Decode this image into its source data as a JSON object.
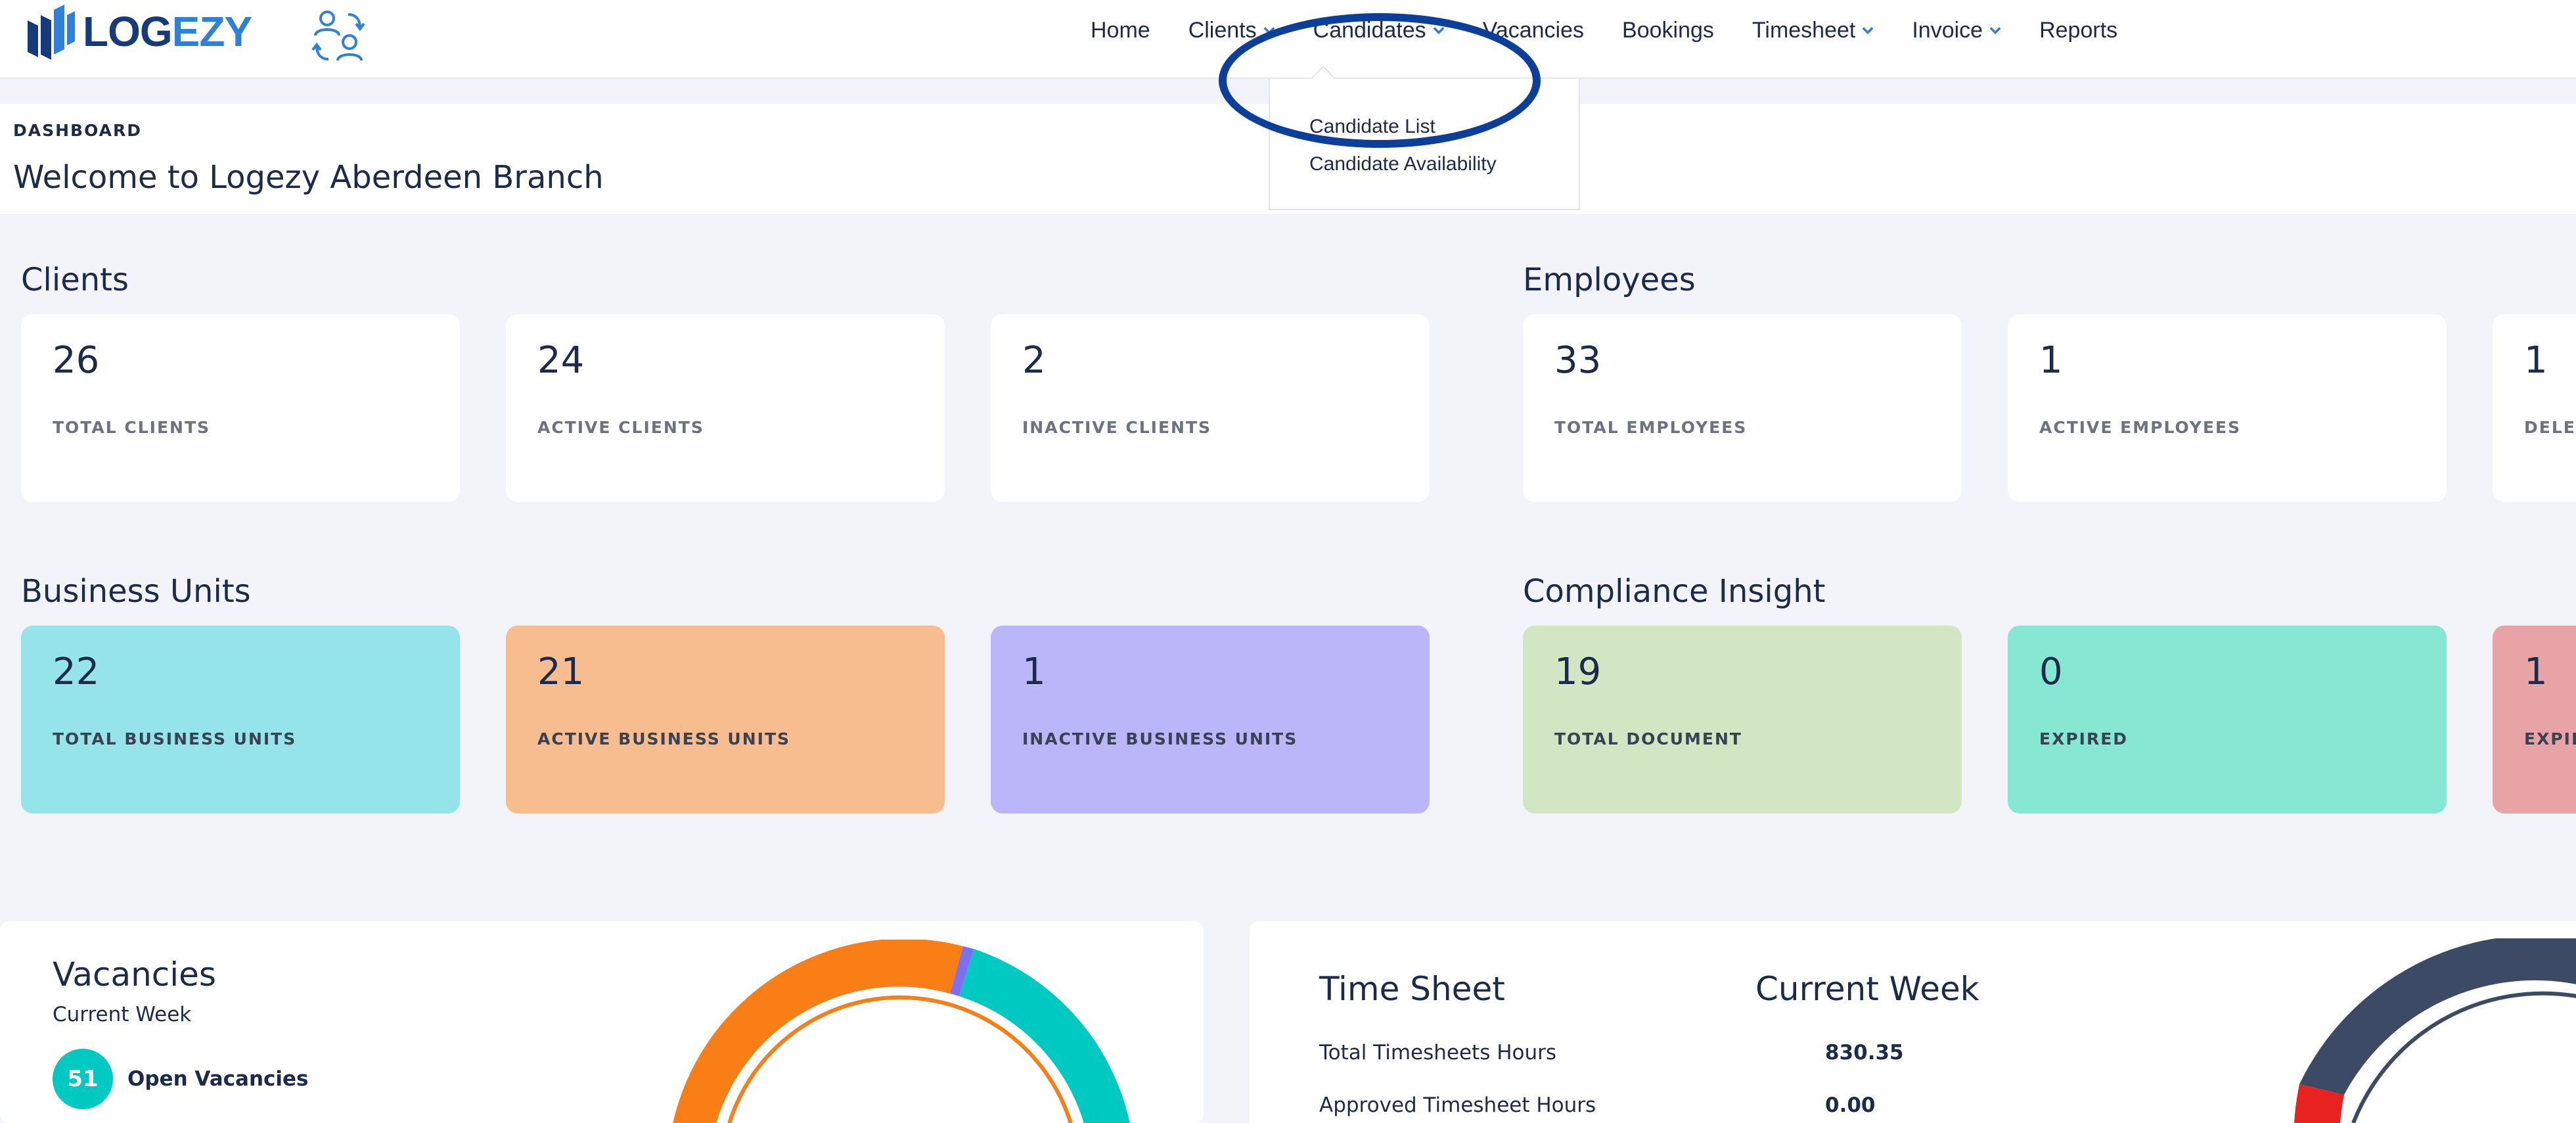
{
  "brand": {
    "logo_part1": "LOG",
    "logo_part2": "EZY"
  },
  "nav": {
    "items": [
      {
        "label": "Home"
      },
      {
        "label": "Clients"
      },
      {
        "label": "Candidates"
      },
      {
        "label": "Vacancies"
      },
      {
        "label": "Bookings"
      },
      {
        "label": "Timesheet"
      },
      {
        "label": "Invoice"
      },
      {
        "label": "Reports"
      }
    ]
  },
  "candidates_menu": {
    "items": [
      "Candidate List",
      "Candidate Availability"
    ]
  },
  "header": {
    "breadcrumb": "DASHBOARD",
    "title": "Welcome to Logezy Aberdeen Branch"
  },
  "clients": {
    "title": "Clients",
    "cards": [
      {
        "value": "26",
        "label": "TOTAL CLIENTS"
      },
      {
        "value": "24",
        "label": "ACTIVE CLIENTS"
      },
      {
        "value": "2",
        "label": "INACTIVE CLIENTS"
      }
    ]
  },
  "employees": {
    "title": "Employees",
    "cards": [
      {
        "value": "33",
        "label": "TOTAL EMPLOYEES"
      },
      {
        "value": "1",
        "label": "ACTIVE EMPLOYEES"
      },
      {
        "value": "1",
        "label": "DELET"
      }
    ]
  },
  "business_units": {
    "title": "Business Units",
    "cards": [
      {
        "value": "22",
        "label": "TOTAL BUSINESS UNITS",
        "color": "#95e4ea"
      },
      {
        "value": "21",
        "label": "ACTIVE BUSINESS UNITS",
        "color": "#f8bd8f"
      },
      {
        "value": "1",
        "label": "INACTIVE BUSINESS UNITS",
        "color": "#bbb6fa"
      }
    ]
  },
  "compliance": {
    "title": "Compliance Insight",
    "cards": [
      {
        "value": "19",
        "label": "TOTAL DOCUMENT",
        "color": "#d3e6c3"
      },
      {
        "value": "0",
        "label": "EXPIRED",
        "color": "#86e8d2"
      },
      {
        "value": "1",
        "label": "EXPIR",
        "color": "#e8a3a7"
      }
    ]
  },
  "vacancies": {
    "title": "Vacancies",
    "subtitle": "Current Week",
    "open_count": "51",
    "open_label": "Open Vacancies"
  },
  "timesheet": {
    "title": "Time Sheet",
    "week_label": "Current Week",
    "rows": [
      {
        "label": "Total Timesheets Hours",
        "value": "830.35"
      },
      {
        "label": "Approved Timesheet Hours",
        "value": "0.00"
      }
    ]
  },
  "colors": {
    "accent": "#2f80d8",
    "brand_dark": "#163a7a",
    "donut_orange": "#fa7e16",
    "donut_teal": "#00c9c1",
    "donut_purple": "#7c6ff0",
    "donut_navy": "#3c4a66",
    "donut_red": "#e8231f",
    "ring": "#0b3f9a"
  }
}
